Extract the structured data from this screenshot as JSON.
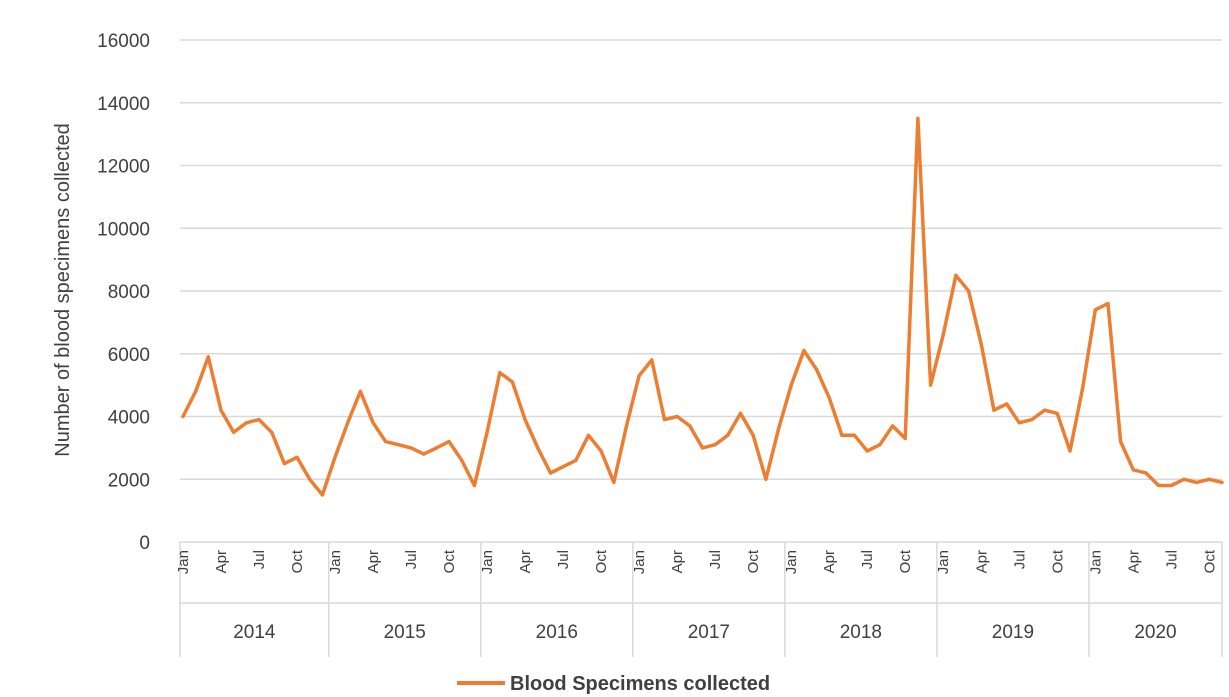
{
  "chart_data": {
    "type": "line",
    "title": "",
    "xlabel": "",
    "ylabel": "Number of blood specimens collected",
    "ylim": [
      0,
      16000
    ],
    "yticks": [
      0,
      2000,
      4000,
      6000,
      8000,
      10000,
      12000,
      14000,
      16000
    ],
    "grid": true,
    "legend_position": "bottom",
    "x_tick_labels": [
      "Jan",
      "Apr",
      "Jul",
      "Oct"
    ],
    "years": [
      "2014",
      "2015",
      "2016",
      "2017",
      "2018",
      "2019",
      "2020"
    ],
    "line_color": "#ED7D31",
    "grid_color": "#D9D9D9",
    "series": [
      {
        "name": "Blood Specimens collected",
        "values": [
          4000,
          4800,
          5900,
          4200,
          3500,
          3800,
          3900,
          3500,
          2500,
          2700,
          2000,
          1500,
          2700,
          3800,
          4800,
          3800,
          3200,
          3100,
          3000,
          2800,
          3000,
          3200,
          2600,
          1800,
          3500,
          5400,
          5100,
          3900,
          3000,
          2200,
          2400,
          2600,
          3400,
          2900,
          1900,
          3700,
          5300,
          5800,
          3900,
          4000,
          3700,
          3000,
          3100,
          3400,
          4100,
          3400,
          2000,
          3600,
          5000,
          6100,
          5500,
          4600,
          3400,
          3400,
          2900,
          3100,
          3700,
          3300,
          13500,
          5000,
          6600,
          8500,
          8000,
          6300,
          4200,
          4400,
          3800,
          3900,
          4200,
          4100,
          2900,
          4900,
          7400,
          7600,
          3200,
          2300,
          2200,
          1800,
          1800,
          2000,
          1900,
          2000,
          1900
        ]
      }
    ]
  }
}
